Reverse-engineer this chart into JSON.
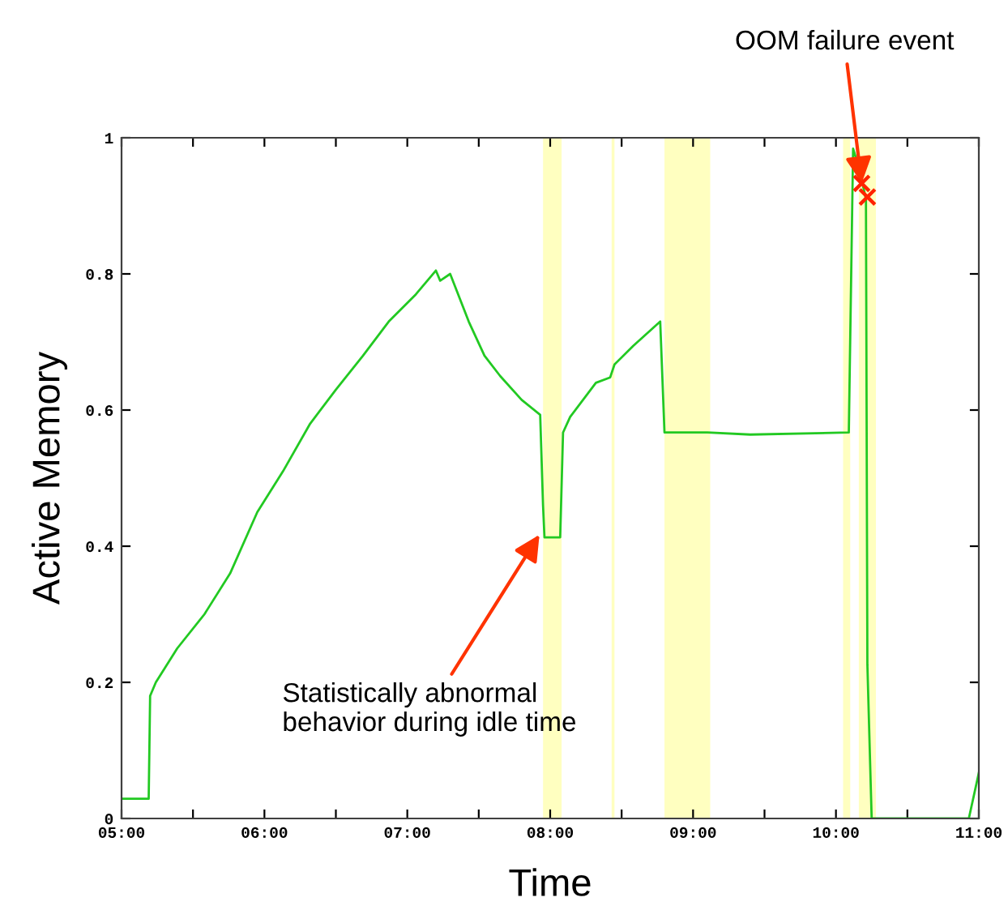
{
  "chart_data": {
    "type": "line",
    "xlabel": "Time",
    "ylabel": "Active Memory",
    "x": [
      5.0,
      5.19,
      5.2,
      5.24,
      5.39,
      5.58,
      5.76,
      5.95,
      6.13,
      6.32,
      6.5,
      6.69,
      6.87,
      7.06,
      7.2,
      7.23,
      7.3,
      7.43,
      7.54,
      7.65,
      7.8,
      7.93,
      7.95,
      7.96,
      8.07,
      8.09,
      8.14,
      8.32,
      8.42,
      8.45,
      8.58,
      8.77,
      8.8,
      9.1,
      9.4,
      10.09,
      10.12,
      10.16,
      10.21,
      10.22,
      10.25,
      10.93,
      11.0
    ],
    "series": [
      {
        "color": "#22c922",
        "values": [
          0.029,
          0.029,
          0.18,
          0.2,
          0.25,
          0.3,
          0.36,
          0.45,
          0.51,
          0.58,
          0.63,
          0.68,
          0.73,
          0.77,
          0.805,
          0.79,
          0.8,
          0.73,
          0.68,
          0.65,
          0.615,
          0.593,
          0.46,
          0.413,
          0.413,
          0.567,
          0.59,
          0.64,
          0.648,
          0.667,
          0.694,
          0.73,
          0.567,
          0.567,
          0.564,
          0.567,
          0.984,
          0.957,
          0.91,
          0.226,
          0.0,
          0.0,
          0.067
        ]
      },
      {
        "type": "scatter",
        "color": "#ff2200",
        "marker": "cross",
        "x": [
          10.18,
          10.22
        ],
        "values": [
          0.933,
          0.913
        ]
      }
    ],
    "xlim": [
      5,
      11
    ],
    "ylim": [
      0,
      1
    ],
    "xticks": [
      {
        "value": 5,
        "label": "05:00"
      },
      {
        "value": 5.5,
        "label": null
      },
      {
        "value": 6,
        "label": "06:00"
      },
      {
        "value": 6.5,
        "label": null
      },
      {
        "value": 7,
        "label": "07:00"
      },
      {
        "value": 7.5,
        "label": null
      },
      {
        "value": 8,
        "label": "08:00"
      },
      {
        "value": 8.5,
        "label": null
      },
      {
        "value": 9,
        "label": "09:00"
      },
      {
        "value": 9.5,
        "label": null
      },
      {
        "value": 10,
        "label": "10:00"
      },
      {
        "value": 10.5,
        "label": null
      },
      {
        "value": 11,
        "label": "11:00"
      }
    ],
    "yticks": [
      0,
      0.2,
      0.4,
      0.6,
      0.8,
      1
    ],
    "bands": [
      {
        "axis": "x",
        "from": 7.95,
        "to": 8.08,
        "color": "#ffffc0"
      },
      {
        "axis": "x",
        "from": 8.43,
        "to": 8.45,
        "color": "#ffffc0"
      },
      {
        "axis": "x",
        "from": 8.8,
        "to": 9.12,
        "color": "#ffffc0"
      },
      {
        "axis": "x",
        "from": 10.05,
        "to": 10.1,
        "color": "#ffffc0"
      },
      {
        "axis": "x",
        "from": 10.16,
        "to": 10.28,
        "color": "#ffffc0"
      }
    ],
    "annotations": [
      {
        "text": "OOM failure event",
        "x": 10.18,
        "y": 0.933
      },
      {
        "text": "Statistically abnormal\nbehavior during idle time",
        "x": 7.925,
        "y": 0.417
      }
    ],
    "grid": false,
    "legend": false
  }
}
